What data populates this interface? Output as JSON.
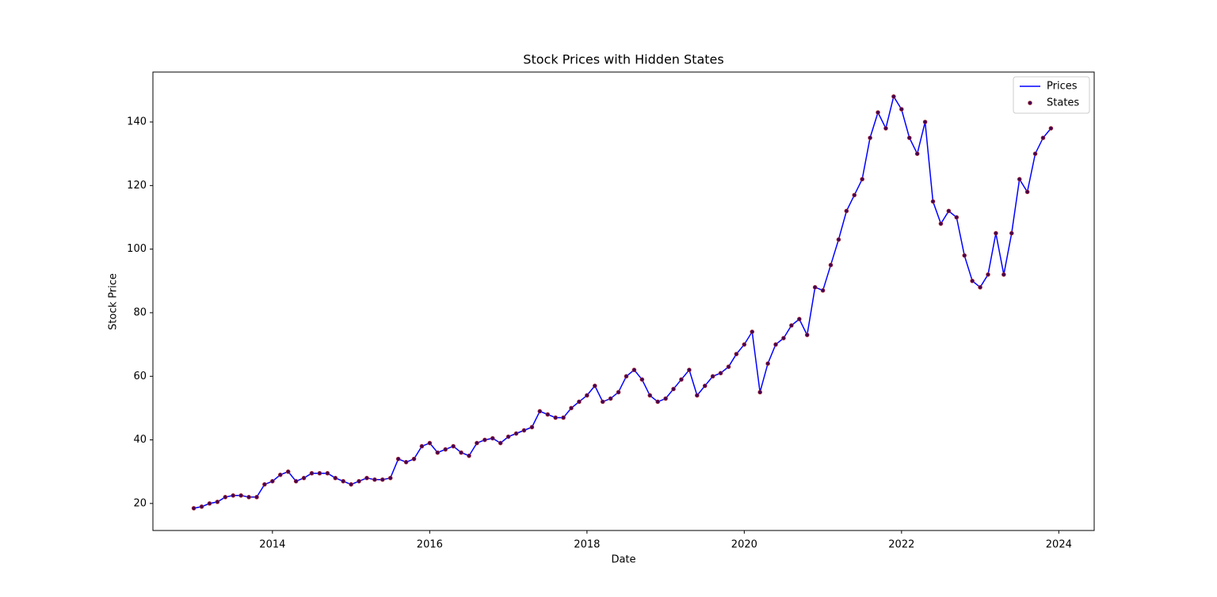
{
  "chart_data": {
    "type": "line_scatter",
    "title": "Stock Prices with Hidden States",
    "x_label": "Date",
    "y_label": "Stock Price",
    "x": [
      2013.0,
      2013.1,
      2013.2,
      2013.3,
      2013.4,
      2013.5,
      2013.6,
      2013.7,
      2013.8,
      2013.9,
      2014.0,
      2014.1,
      2014.2,
      2014.3,
      2014.4,
      2014.5,
      2014.6,
      2014.7,
      2014.8,
      2014.9,
      2015.0,
      2015.1,
      2015.2,
      2015.3,
      2015.4,
      2015.5,
      2015.6,
      2015.7,
      2015.8,
      2015.9,
      2016.0,
      2016.1,
      2016.2,
      2016.3,
      2016.4,
      2016.5,
      2016.6,
      2016.7,
      2016.8,
      2016.9,
      2017.0,
      2017.1,
      2017.2,
      2017.3,
      2017.4,
      2017.5,
      2017.6,
      2017.7,
      2017.8,
      2017.9,
      2018.0,
      2018.1,
      2018.2,
      2018.3,
      2018.4,
      2018.5,
      2018.6,
      2018.7,
      2018.8,
      2018.9,
      2019.0,
      2019.1,
      2019.2,
      2019.3,
      2019.4,
      2019.5,
      2019.6,
      2019.7,
      2019.8,
      2019.9,
      2020.0,
      2020.1,
      2020.2,
      2020.3,
      2020.4,
      2020.5,
      2020.6,
      2020.7,
      2020.8,
      2020.9,
      2021.0,
      2021.1,
      2021.2,
      2021.3,
      2021.4,
      2021.5,
      2021.6,
      2021.7,
      2021.8,
      2021.9,
      2022.0,
      2022.1,
      2022.2,
      2022.3,
      2022.4,
      2022.5,
      2022.6,
      2022.7,
      2022.8,
      2022.9,
      2023.0,
      2023.1,
      2023.2,
      2023.3,
      2023.4,
      2023.5,
      2023.6,
      2023.7,
      2023.8,
      2023.9
    ],
    "series": [
      {
        "name": "Prices",
        "color": "#0000ff",
        "values": [
          18.5,
          19,
          20,
          20.5,
          22,
          22.5,
          22.5,
          22,
          22,
          26,
          27,
          29,
          30,
          27,
          28,
          29.5,
          29.5,
          29.5,
          28,
          27,
          26,
          27,
          28,
          27.5,
          27.5,
          28,
          34,
          33,
          34,
          38,
          39,
          36,
          37,
          38,
          36,
          35,
          39,
          40,
          40.5,
          39,
          41,
          42,
          43,
          44,
          49,
          48,
          47,
          47,
          50,
          52,
          54,
          57,
          52,
          53,
          55,
          60,
          62,
          59,
          54,
          52,
          53,
          56,
          59,
          62,
          54,
          57,
          60,
          61,
          63,
          67,
          70,
          74,
          55,
          64,
          70,
          72,
          76,
          78,
          73,
          88,
          87,
          95,
          103,
          112,
          117,
          122,
          135,
          143,
          138,
          148,
          144,
          135,
          130,
          140,
          115,
          108,
          112,
          110,
          98,
          90,
          88,
          92,
          105,
          92,
          105,
          122,
          118,
          130,
          135,
          138
        ]
      },
      {
        "name": "States",
        "color": "#440154",
        "values": [
          18.5,
          19,
          20,
          20.5,
          22,
          22.5,
          22.5,
          22,
          22,
          26,
          27,
          29,
          30,
          27,
          28,
          29.5,
          29.5,
          29.5,
          28,
          27,
          26,
          27,
          28,
          27.5,
          27.5,
          28,
          34,
          33,
          34,
          38,
          39,
          36,
          37,
          38,
          36,
          35,
          39,
          40,
          40.5,
          39,
          41,
          42,
          43,
          44,
          49,
          48,
          47,
          47,
          50,
          52,
          54,
          57,
          52,
          53,
          55,
          60,
          62,
          59,
          54,
          52,
          53,
          56,
          59,
          62,
          54,
          57,
          60,
          61,
          63,
          67,
          70,
          74,
          55,
          64,
          70,
          72,
          76,
          78,
          73,
          88,
          87,
          95,
          103,
          112,
          117,
          122,
          135,
          143,
          138,
          148,
          144,
          135,
          130,
          140,
          115,
          108,
          112,
          110,
          98,
          90,
          88,
          92,
          105,
          92,
          105,
          122,
          118,
          130,
          135,
          138
        ]
      }
    ],
    "xlim": [
      2012.48,
      2024.45
    ],
    "xticks": [
      2014,
      2016,
      2018,
      2020,
      2022,
      2024
    ],
    "ylim": [
      11.5,
      155.7
    ],
    "yticks": [
      20,
      40,
      60,
      80,
      100,
      120,
      140
    ],
    "legend": "upper right"
  }
}
